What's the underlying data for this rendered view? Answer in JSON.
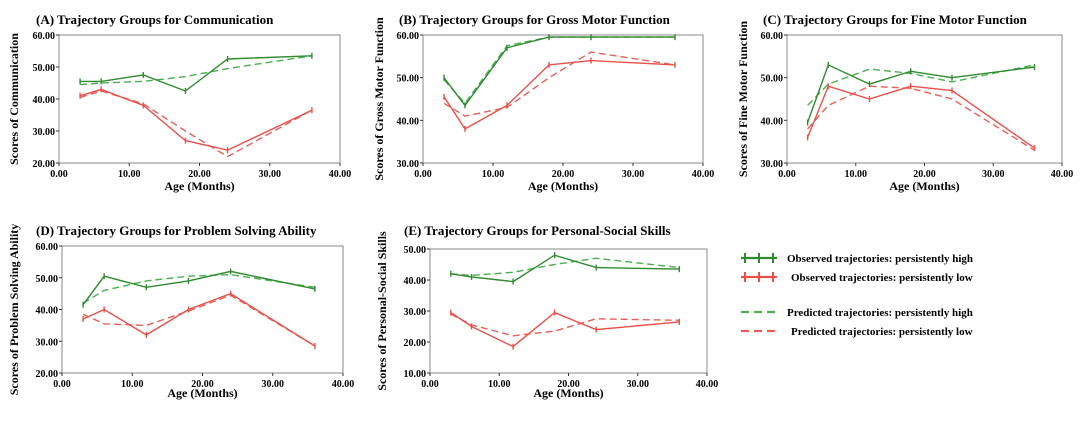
{
  "colors": {
    "high": "#2e8b2e",
    "low": "#e8504a",
    "predicted_high": "#4caf50",
    "predicted_low": "#e66058"
  },
  "legend": [
    {
      "label": "Observed trajectories: persistently high",
      "style": "observed",
      "group": "high"
    },
    {
      "label": "Observed trajectories: persistently low",
      "style": "observed",
      "group": "low"
    },
    {
      "label": "Predicted trajectories: persistently high",
      "style": "predicted",
      "group": "high"
    },
    {
      "label": "Predicted trajectories: persistently low",
      "style": "predicted",
      "group": "low"
    }
  ],
  "chart_data": [
    {
      "type": "line",
      "title": "(A)  Trajectory Groups for Communication",
      "xlabel": "Age (Months)",
      "ylabel": "Scores of Communication",
      "xlim": [
        0,
        40
      ],
      "ylim": [
        20,
        60
      ],
      "xticks": [
        "0.00",
        "10.00",
        "20.00",
        "30.00",
        "40.00"
      ],
      "yticks": [
        "20.00",
        "30.00",
        "40.00",
        "50.00",
        "60.00"
      ],
      "series": [
        {
          "group": "high",
          "style": "observed",
          "x": [
            3,
            6,
            12,
            18,
            24,
            36
          ],
          "y": [
            45.5,
            45.5,
            47.5,
            42.5,
            52.5,
            53.5
          ]
        },
        {
          "group": "low",
          "style": "observed",
          "x": [
            3,
            6,
            12,
            18,
            24,
            36
          ],
          "y": [
            41,
            43,
            38,
            27,
            24,
            36.5
          ]
        },
        {
          "group": "high",
          "style": "predicted",
          "x": [
            3,
            6,
            12,
            18,
            24,
            36
          ],
          "y": [
            44.5,
            45,
            45.5,
            47,
            49.5,
            53.5
          ]
        },
        {
          "group": "low",
          "style": "predicted",
          "x": [
            3,
            6,
            12,
            18,
            24,
            36
          ],
          "y": [
            40.5,
            42.5,
            38.5,
            30,
            22,
            36.5
          ]
        }
      ]
    },
    {
      "type": "line",
      "title": "(B)  Trajectory Groups for Gross Motor Function",
      "xlabel": "Age (Months)",
      "ylabel": "Scores of Gross Motor Function",
      "xlim": [
        0,
        40
      ],
      "ylim": [
        30,
        60
      ],
      "xticks": [
        "0.00",
        "10.00",
        "20.00",
        "30.00",
        "40.00"
      ],
      "yticks": [
        "30.00",
        "40.00",
        "50.00",
        "60.00"
      ],
      "series": [
        {
          "group": "high",
          "style": "observed",
          "x": [
            3,
            6,
            12,
            18,
            24,
            36
          ],
          "y": [
            50,
            43.5,
            57,
            59.5,
            59.5,
            59.5
          ]
        },
        {
          "group": "low",
          "style": "observed",
          "x": [
            3,
            6,
            12,
            18,
            24,
            36
          ],
          "y": [
            45.5,
            38,
            43.5,
            53,
            54,
            53
          ]
        },
        {
          "group": "high",
          "style": "predicted",
          "x": [
            3,
            6,
            12,
            18,
            24,
            36
          ],
          "y": [
            49.5,
            44,
            57.5,
            59.5,
            59.5,
            59.5
          ]
        },
        {
          "group": "low",
          "style": "predicted",
          "x": [
            3,
            6,
            12,
            18,
            24,
            36
          ],
          "y": [
            44,
            41,
            43,
            50,
            56,
            53
          ]
        }
      ]
    },
    {
      "type": "line",
      "title": "(C)  Trajectory Groups for Fine Motor Function",
      "xlabel": "Age (Months)",
      "ylabel": "Scores of Fine Motor Function",
      "xlim": [
        0,
        40
      ],
      "ylim": [
        30,
        60
      ],
      "xticks": [
        "0.00",
        "10.00",
        "20.00",
        "30.00",
        "40.00"
      ],
      "yticks": [
        "30.00",
        "40.00",
        "50.00",
        "60.00"
      ],
      "series": [
        {
          "group": "high",
          "style": "observed",
          "x": [
            3,
            6,
            12,
            18,
            24,
            36
          ],
          "y": [
            39.5,
            53,
            48.5,
            51.5,
            50,
            52.5
          ]
        },
        {
          "group": "low",
          "style": "observed",
          "x": [
            3,
            6,
            12,
            18,
            24,
            36
          ],
          "y": [
            36,
            48,
            45,
            48,
            47,
            33.5
          ]
        },
        {
          "group": "high",
          "style": "predicted",
          "x": [
            3,
            6,
            12,
            18,
            24,
            36
          ],
          "y": [
            43.5,
            48.5,
            52,
            51,
            49,
            53
          ]
        },
        {
          "group": "low",
          "style": "predicted",
          "x": [
            3,
            6,
            12,
            18,
            24,
            36
          ],
          "y": [
            38,
            43.5,
            48,
            47.5,
            45,
            33
          ]
        }
      ]
    },
    {
      "type": "line",
      "title": "(D)  Trajectory Groups for Problem Solving Ability",
      "xlabel": "Age (Months)",
      "ylabel": "Scores of Problem Solving Ability",
      "xlim": [
        0,
        40
      ],
      "ylim": [
        20,
        60
      ],
      "xticks": [
        "0.00",
        "10.00",
        "20.00",
        "30.00",
        "40.00"
      ],
      "yticks": [
        "20.00",
        "30.00",
        "40.00",
        "50.00",
        "60.00"
      ],
      "series": [
        {
          "group": "high",
          "style": "observed",
          "x": [
            3,
            6,
            12,
            18,
            24,
            36
          ],
          "y": [
            41.5,
            50.5,
            47,
            49,
            52,
            46.5
          ]
        },
        {
          "group": "low",
          "style": "observed",
          "x": [
            3,
            6,
            12,
            18,
            24,
            36
          ],
          "y": [
            37,
            40,
            32,
            40,
            45,
            28.5
          ]
        },
        {
          "group": "high",
          "style": "predicted",
          "x": [
            3,
            6,
            12,
            18,
            24,
            36
          ],
          "y": [
            42,
            46,
            49,
            50.5,
            51,
            47
          ]
        },
        {
          "group": "low",
          "style": "predicted",
          "x": [
            3,
            6,
            12,
            18,
            24,
            36
          ],
          "y": [
            38.5,
            35.5,
            35,
            39.5,
            44.5,
            28.5
          ]
        }
      ]
    },
    {
      "type": "line",
      "title": "(E)  Trajectory  Groups for Personal-Social Skills",
      "xlabel": "Age (Months)",
      "ylabel": "Scores of Personal-Social Skills",
      "xlim": [
        0,
        40
      ],
      "ylim": [
        10,
        50
      ],
      "xticks": [
        "0.00",
        "10.00",
        "20.00",
        "30.00",
        "40.00"
      ],
      "yticks": [
        "10.00",
        "20.00",
        "30.00",
        "40.00",
        "50.00"
      ],
      "series": [
        {
          "group": "high",
          "style": "observed",
          "x": [
            3,
            6,
            12,
            18,
            24,
            36
          ],
          "y": [
            42,
            41,
            39.5,
            48,
            44,
            43.5
          ]
        },
        {
          "group": "low",
          "style": "observed",
          "x": [
            3,
            6,
            12,
            18,
            24,
            36
          ],
          "y": [
            29.5,
            25,
            18.5,
            29.5,
            24,
            26.5
          ]
        },
        {
          "group": "high",
          "style": "predicted",
          "x": [
            3,
            6,
            12,
            18,
            24,
            36
          ],
          "y": [
            42,
            41.5,
            42.5,
            45,
            47,
            44
          ]
        },
        {
          "group": "low",
          "style": "predicted",
          "x": [
            3,
            6,
            12,
            18,
            24,
            36
          ],
          "y": [
            29,
            25.5,
            22,
            23.5,
            27.5,
            27
          ]
        }
      ]
    }
  ]
}
